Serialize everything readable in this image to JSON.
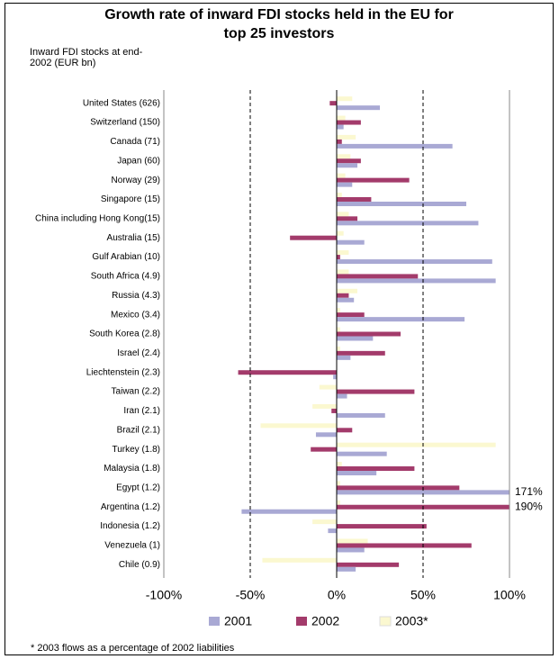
{
  "chart_data": {
    "type": "barh",
    "title": "Growth rate of inward FDI stocks held in the EU for top 25 investors",
    "y_label": "Inward FDI stocks at end-2002 (EUR bn)",
    "footnote": "* 2003 flows as a percentage of 2002 liabilities",
    "categories": [
      "United States (626)",
      "Switzerland (150)",
      "Canada (71)",
      "Japan (60)",
      "Norway (29)",
      "Singapore (15)",
      "China including Hong Kong(15)",
      "Australia (15)",
      "Gulf Arabian (10)",
      "South Africa (4.9)",
      "Russia (4.3)",
      "Mexico (3.4)",
      "South Korea (2.8)",
      "Israel (2.4)",
      "Liechtenstein (2.3)",
      "Taiwan (2.2)",
      "Iran (2.1)",
      "Brazil (2.1)",
      "Turkey (1.8)",
      "Malaysia (1.8)",
      "Egypt (1.2)",
      "Argentina (1.2)",
      "Indonesia (1.2)",
      "Venezuela (1)",
      "Chile (0.9)"
    ],
    "series": [
      {
        "name": "2001",
        "color": "#a9a9d4",
        "values": [
          25,
          4,
          67,
          12,
          9,
          75,
          82,
          16,
          90,
          92,
          10,
          74,
          21,
          8,
          -2,
          6,
          28,
          -12,
          29,
          23,
          171,
          -55,
          -5,
          16,
          11
        ],
        "value_labels": [
          null,
          null,
          null,
          null,
          null,
          null,
          null,
          null,
          null,
          null,
          null,
          null,
          null,
          null,
          null,
          null,
          null,
          null,
          null,
          null,
          "171%",
          null,
          null,
          null,
          null
        ]
      },
      {
        "name": "2002",
        "color": "#a33b6b",
        "values": [
          -4,
          14,
          3,
          14,
          42,
          20,
          12,
          -27,
          2,
          47,
          7,
          16,
          37,
          28,
          -57,
          45,
          -3,
          9,
          -15,
          45,
          71,
          190,
          52,
          78,
          36
        ],
        "value_labels": [
          null,
          null,
          null,
          null,
          null,
          null,
          null,
          null,
          null,
          null,
          null,
          null,
          null,
          null,
          null,
          null,
          null,
          null,
          null,
          null,
          null,
          "190%",
          null,
          null,
          null
        ]
      },
      {
        "name": "2003*",
        "color": "#fbf8d0",
        "values": [
          9,
          5,
          11,
          8,
          5,
          3,
          7,
          4,
          7,
          7,
          12,
          2,
          2,
          2,
          0,
          -10,
          -14,
          -44,
          92,
          3,
          2,
          2,
          -14,
          18,
          -43
        ]
      }
    ],
    "xlim": [
      -100,
      100
    ],
    "xticks": [
      {
        "value": -100,
        "label": "-100%"
      },
      {
        "value": -50,
        "label": "-50%"
      },
      {
        "value": 0,
        "label": "0%"
      },
      {
        "value": 50,
        "label": "50%"
      },
      {
        "value": 100,
        "label": "100%"
      }
    ],
    "grid": true,
    "legend": "bottom"
  }
}
